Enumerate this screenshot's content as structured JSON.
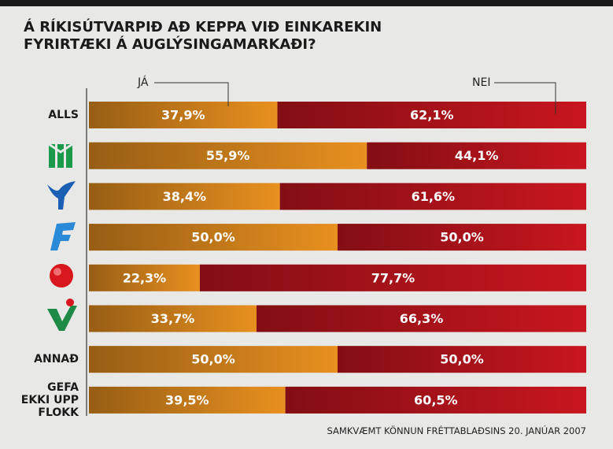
{
  "chart_data": {
    "type": "stacked-bar",
    "title": "Á RÍKISÚTVARPIÐ AÐ KEPPA VIÐ EINKAREKIN\nFYRIRTÆKI Á AUGLÝSINGAMARKAÐI?",
    "categories": [
      "ALLS",
      null,
      null,
      null,
      null,
      null,
      "ANNAÐ",
      "GEFA\nEKKI UPP\nFLOKK"
    ],
    "series": [
      {
        "name": "JÁ",
        "color": "#e8901f",
        "values": [
          37.9,
          55.9,
          38.4,
          50.0,
          22.3,
          33.7,
          50.0,
          39.5
        ],
        "value_labels": [
          "37,9%",
          "55,9%",
          "38,4%",
          "50,0%",
          "22,3%",
          "33,7%",
          "50,0%",
          "39,5%"
        ]
      },
      {
        "name": "NEI",
        "color": "#c8161f",
        "values": [
          62.1,
          44.1,
          61.6,
          50.0,
          77.7,
          66.3,
          50.0,
          60.5
        ],
        "value_labels": [
          "62,1%",
          "44,1%",
          "61,6%",
          "50,0%",
          "77,7%",
          "66,3%",
          "50,0%",
          "60,5%"
        ]
      }
    ],
    "footnote": "SAMKVÆMT KÖNNUN FRÉTTABLAÐSINS 20. JANÚAR 2007"
  }
}
